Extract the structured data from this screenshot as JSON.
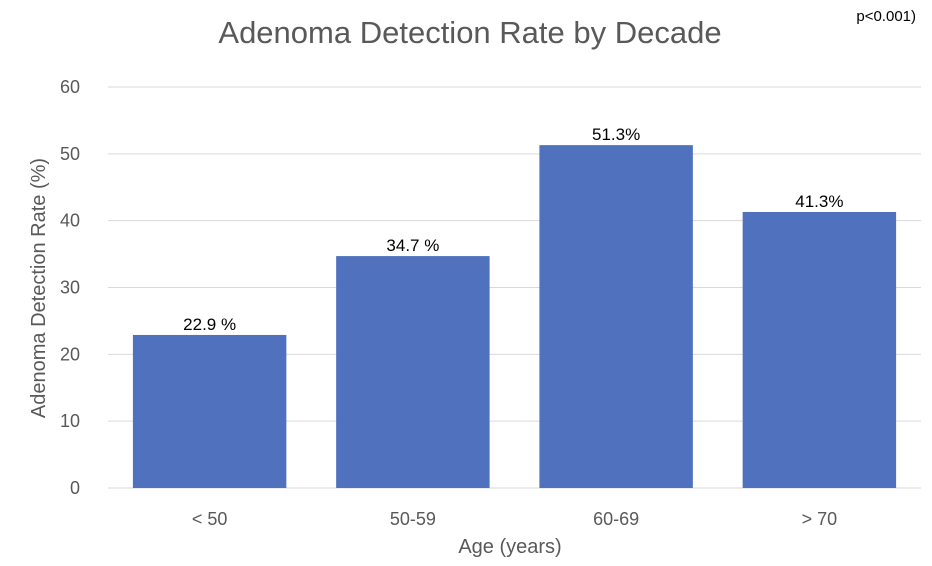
{
  "chart_data": {
    "type": "bar",
    "title": "Adenoma Detection Rate by Decade",
    "annotation": "p<0.001)",
    "categories": [
      "< 50",
      "50-59",
      "60-69",
      "> 70"
    ],
    "values": [
      22.9,
      34.7,
      51.3,
      41.3
    ],
    "data_labels": [
      "22.9 %",
      "34.7 %",
      "51.3%",
      "41.3%"
    ],
    "xlabel": "Age (years)",
    "ylabel": "Adenoma Detection Rate (%)",
    "ylim": [
      0,
      60
    ],
    "yticks": [
      0,
      10,
      20,
      30,
      40,
      50,
      60
    ],
    "grid": true,
    "legend": "none",
    "bar_color": "#4F71BE",
    "grid_color": "#D9D9D9"
  }
}
